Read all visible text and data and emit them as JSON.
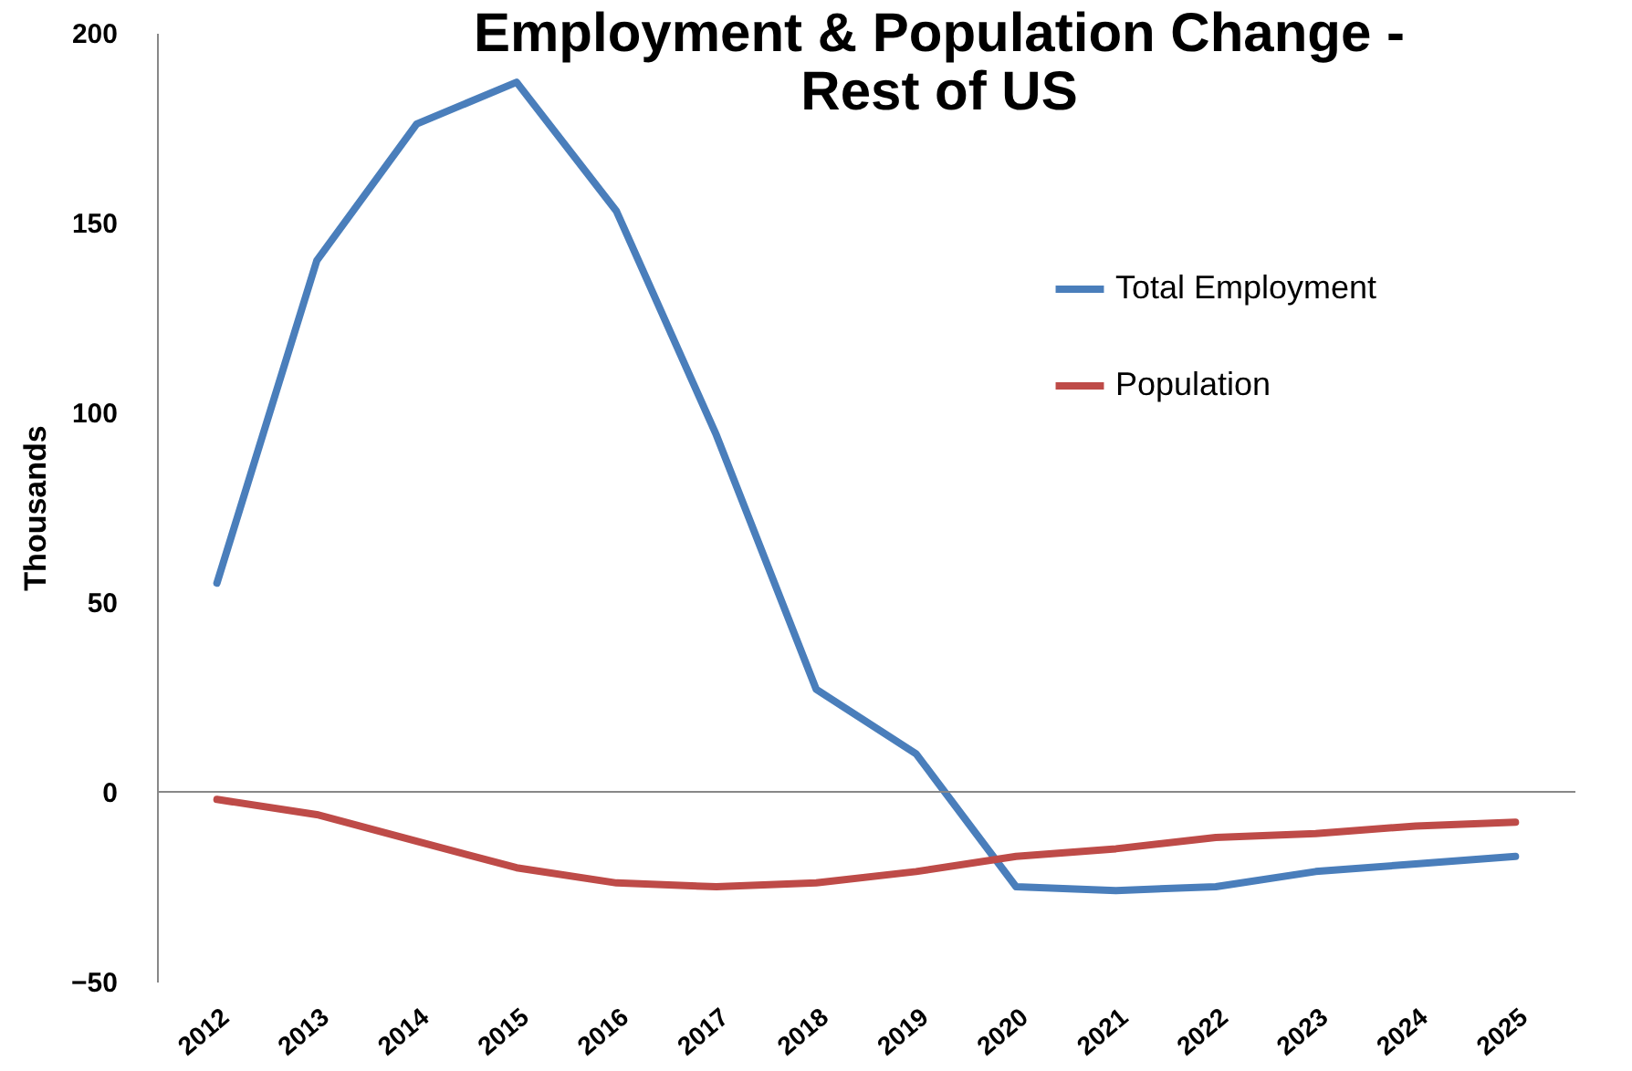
{
  "chart_data": {
    "type": "line",
    "title": [
      "Employment & Population Change -",
      "Rest of US"
    ],
    "ylabel": "Thousands",
    "categories": [
      "2012",
      "2013",
      "2014",
      "2015",
      "2016",
      "2017",
      "2018",
      "2019",
      "2020",
      "2021",
      "2022",
      "2023",
      "2024",
      "2025"
    ],
    "series": [
      {
        "name": "Total Employment",
        "color": "#4a7ebb",
        "values": [
          55,
          140,
          176,
          187,
          153,
          94,
          27,
          10,
          -25,
          -26,
          -25,
          -21,
          -19,
          -17
        ]
      },
      {
        "name": "Population",
        "color": "#be4b48",
        "values": [
          -2,
          -6,
          -13,
          -20,
          -24,
          -25,
          -24,
          -21,
          -17,
          -15,
          -12,
          -11,
          -9,
          -8
        ]
      }
    ],
    "ylim": [
      -50,
      200
    ],
    "yticks": [
      -50,
      0,
      50,
      100,
      150,
      200
    ],
    "ref_lines": [
      {
        "axis": "y",
        "value": 0
      }
    ],
    "legend": "right",
    "marker": "none",
    "line_style": "solid"
  }
}
